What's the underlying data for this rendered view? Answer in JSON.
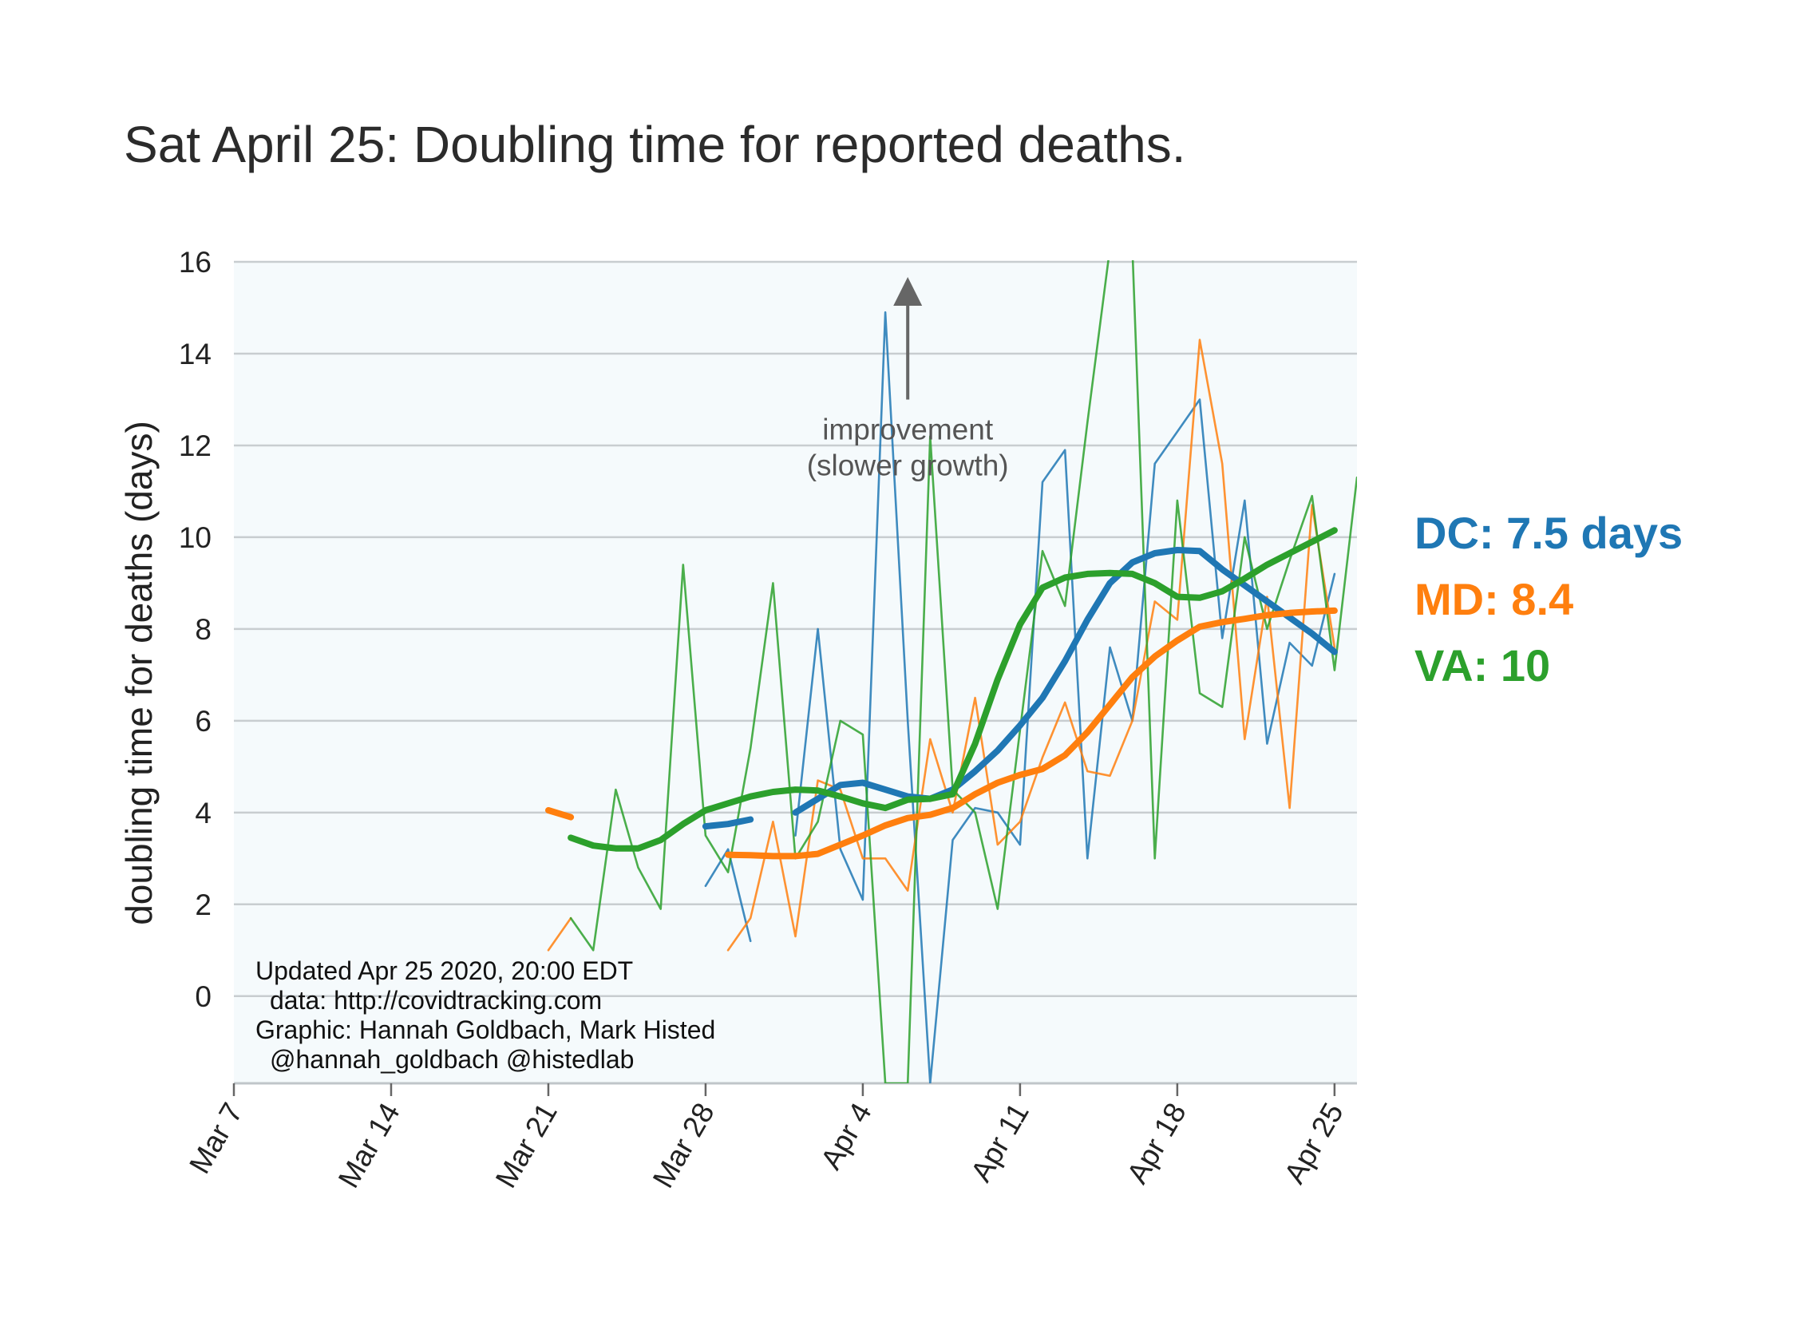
{
  "chart_data": {
    "type": "line",
    "title": "Sat April 25: Doubling time for reported deaths.",
    "xlabel": "",
    "ylabel": "doubling time for deaths (days)",
    "x_ticks": [
      "Mar 7",
      "Mar 14",
      "Mar 21",
      "Mar 28",
      "Apr 4",
      "Apr 11",
      "Apr 18",
      "Apr 25"
    ],
    "y_ticks": [
      "0",
      "2",
      "4",
      "6",
      "8",
      "10",
      "12",
      "14",
      "16"
    ],
    "xlim": [
      "2020-03-07",
      "2020-04-26"
    ],
    "ylim": [
      -1.9,
      16
    ],
    "grid": "horizontal",
    "background": "#f5fafc",
    "annotation": {
      "line1": "improvement",
      "line2": "(slower growth)",
      "x": "2020-04-06",
      "y_from": 13,
      "y_to": 15.6
    },
    "credits": [
      "Updated Apr 25 2020, 20:00 EDT",
      "data: http://covidtracking.com",
      "Graphic: Hannah Goldbach, Mark Histed",
      "@hannah_goldbach @histedlab"
    ],
    "legend": [
      {
        "label": "DC: 7.5 days",
        "color": "#1f77b4"
      },
      {
        "label": "MD: 8.4",
        "color": "#ff7f0e"
      },
      {
        "label": "VA: 10",
        "color": "#2ca02c"
      }
    ],
    "series": [
      {
        "state": "DC",
        "color": "#1f77b4",
        "kind": "raw",
        "points": [
          [
            "2020-03-28",
            2.4
          ],
          [
            "2020-03-29",
            3.2
          ],
          [
            "2020-03-30",
            1.2
          ],
          [
            "2020-03-31",
            null
          ],
          [
            "2020-04-01",
            3.5
          ],
          [
            "2020-04-02",
            8.0
          ],
          [
            "2020-04-03",
            3.2
          ],
          [
            "2020-04-04",
            2.1
          ],
          [
            "2020-04-05",
            14.9
          ],
          [
            "2020-04-06",
            6.0
          ],
          [
            "2020-04-07",
            -1.9
          ],
          [
            "2020-04-08",
            3.4
          ],
          [
            "2020-04-09",
            4.1
          ],
          [
            "2020-04-10",
            4.0
          ],
          [
            "2020-04-11",
            3.3
          ],
          [
            "2020-04-12",
            11.2
          ],
          [
            "2020-04-13",
            11.9
          ],
          [
            "2020-04-14",
            3.0
          ],
          [
            "2020-04-15",
            7.6
          ],
          [
            "2020-04-16",
            6.0
          ],
          [
            "2020-04-17",
            11.6
          ],
          [
            "2020-04-18",
            12.3
          ],
          [
            "2020-04-19",
            13.0
          ],
          [
            "2020-04-20",
            7.8
          ],
          [
            "2020-04-21",
            10.8
          ],
          [
            "2020-04-22",
            5.5
          ],
          [
            "2020-04-23",
            7.7
          ],
          [
            "2020-04-24",
            7.2
          ],
          [
            "2020-04-25",
            9.2
          ]
        ]
      },
      {
        "state": "DC",
        "color": "#1f77b4",
        "kind": "smoothed",
        "points": [
          [
            "2020-03-28",
            3.7
          ],
          [
            "2020-03-29",
            3.75
          ],
          [
            "2020-03-30",
            3.85
          ],
          [
            "2020-03-31",
            null
          ],
          [
            "2020-04-01",
            4.0
          ],
          [
            "2020-04-02",
            4.3
          ],
          [
            "2020-04-03",
            4.6
          ],
          [
            "2020-04-04",
            4.65
          ],
          [
            "2020-04-05",
            4.5
          ],
          [
            "2020-04-06",
            4.35
          ],
          [
            "2020-04-07",
            4.3
          ],
          [
            "2020-04-08",
            4.5
          ],
          [
            "2020-04-09",
            4.9
          ],
          [
            "2020-04-10",
            5.35
          ],
          [
            "2020-04-11",
            5.9
          ],
          [
            "2020-04-12",
            6.5
          ],
          [
            "2020-04-13",
            7.3
          ],
          [
            "2020-04-14",
            8.2
          ],
          [
            "2020-04-15",
            9.0
          ],
          [
            "2020-04-16",
            9.45
          ],
          [
            "2020-04-17",
            9.65
          ],
          [
            "2020-04-18",
            9.72
          ],
          [
            "2020-04-19",
            9.7
          ],
          [
            "2020-04-20",
            9.3
          ],
          [
            "2020-04-21",
            8.95
          ],
          [
            "2020-04-22",
            8.6
          ],
          [
            "2020-04-23",
            8.25
          ],
          [
            "2020-04-24",
            7.9
          ],
          [
            "2020-04-25",
            7.5
          ]
        ]
      },
      {
        "state": "MD",
        "color": "#ff7f0e",
        "kind": "raw",
        "points": [
          [
            "2020-03-21",
            1.0
          ],
          [
            "2020-03-22",
            1.7
          ],
          [
            "2020-03-23",
            null
          ],
          [
            "2020-03-24",
            null
          ],
          [
            "2020-03-25",
            null
          ],
          [
            "2020-03-26",
            null
          ],
          [
            "2020-03-27",
            null
          ],
          [
            "2020-03-28",
            null
          ],
          [
            "2020-03-29",
            1.0
          ],
          [
            "2020-03-30",
            1.7
          ],
          [
            "2020-03-31",
            3.8
          ],
          [
            "2020-04-01",
            1.3
          ],
          [
            "2020-04-02",
            4.7
          ],
          [
            "2020-04-03",
            4.5
          ],
          [
            "2020-04-04",
            3.0
          ],
          [
            "2020-04-05",
            3.0
          ],
          [
            "2020-04-06",
            2.3
          ],
          [
            "2020-04-07",
            5.6
          ],
          [
            "2020-04-08",
            4.0
          ],
          [
            "2020-04-09",
            6.5
          ],
          [
            "2020-04-10",
            3.3
          ],
          [
            "2020-04-11",
            3.8
          ],
          [
            "2020-04-12",
            5.2
          ],
          [
            "2020-04-13",
            6.4
          ],
          [
            "2020-04-14",
            4.9
          ],
          [
            "2020-04-15",
            4.8
          ],
          [
            "2020-04-16",
            6.0
          ],
          [
            "2020-04-17",
            8.6
          ],
          [
            "2020-04-18",
            8.2
          ],
          [
            "2020-04-19",
            14.3
          ],
          [
            "2020-04-20",
            11.6
          ],
          [
            "2020-04-21",
            5.6
          ],
          [
            "2020-04-22",
            8.7
          ],
          [
            "2020-04-23",
            4.1
          ],
          [
            "2020-04-24",
            10.7
          ],
          [
            "2020-04-25",
            7.6
          ]
        ]
      },
      {
        "state": "MD",
        "color": "#ff7f0e",
        "kind": "smoothed",
        "points": [
          [
            "2020-03-21",
            4.05
          ],
          [
            "2020-03-22",
            3.9
          ],
          [
            "2020-03-23",
            null
          ],
          [
            "2020-03-24",
            null
          ],
          [
            "2020-03-25",
            null
          ],
          [
            "2020-03-26",
            null
          ],
          [
            "2020-03-27",
            null
          ],
          [
            "2020-03-28",
            null
          ],
          [
            "2020-03-29",
            3.08
          ],
          [
            "2020-03-30",
            3.07
          ],
          [
            "2020-03-31",
            3.05
          ],
          [
            "2020-04-01",
            3.05
          ],
          [
            "2020-04-02",
            3.1
          ],
          [
            "2020-04-03",
            3.3
          ],
          [
            "2020-04-04",
            3.5
          ],
          [
            "2020-04-05",
            3.72
          ],
          [
            "2020-04-06",
            3.88
          ],
          [
            "2020-04-07",
            3.95
          ],
          [
            "2020-04-08",
            4.1
          ],
          [
            "2020-04-09",
            4.4
          ],
          [
            "2020-04-10",
            4.65
          ],
          [
            "2020-04-11",
            4.82
          ],
          [
            "2020-04-12",
            4.95
          ],
          [
            "2020-04-13",
            5.25
          ],
          [
            "2020-04-14",
            5.75
          ],
          [
            "2020-04-15",
            6.35
          ],
          [
            "2020-04-16",
            6.95
          ],
          [
            "2020-04-17",
            7.4
          ],
          [
            "2020-04-18",
            7.75
          ],
          [
            "2020-04-19",
            8.05
          ],
          [
            "2020-04-20",
            8.15
          ],
          [
            "2020-04-21",
            8.22
          ],
          [
            "2020-04-22",
            8.3
          ],
          [
            "2020-04-23",
            8.35
          ],
          [
            "2020-04-24",
            8.38
          ],
          [
            "2020-04-25",
            8.4
          ]
        ]
      },
      {
        "state": "VA",
        "color": "#2ca02c",
        "kind": "raw",
        "points": [
          [
            "2020-03-21",
            null
          ],
          [
            "2020-03-22",
            1.7
          ],
          [
            "2020-03-23",
            1.0
          ],
          [
            "2020-03-24",
            4.5
          ],
          [
            "2020-03-25",
            2.8
          ],
          [
            "2020-03-26",
            1.9
          ],
          [
            "2020-03-27",
            9.4
          ],
          [
            "2020-03-28",
            3.5
          ],
          [
            "2020-03-29",
            2.7
          ],
          [
            "2020-03-30",
            5.4
          ],
          [
            "2020-03-31",
            9.0
          ],
          [
            "2020-04-01",
            3.0
          ],
          [
            "2020-04-02",
            3.8
          ],
          [
            "2020-04-03",
            6.0
          ],
          [
            "2020-04-04",
            5.7
          ],
          [
            "2020-04-05",
            -1.9
          ],
          [
            "2020-04-06",
            -1.9
          ],
          [
            "2020-04-07",
            12.2
          ],
          [
            "2020-04-08",
            4.5
          ],
          [
            "2020-04-09",
            4.0
          ],
          [
            "2020-04-10",
            1.9
          ],
          [
            "2020-04-11",
            5.8
          ],
          [
            "2020-04-12",
            9.7
          ],
          [
            "2020-04-13",
            8.5
          ],
          [
            "2020-04-14",
            12.5
          ],
          [
            "2020-04-15",
            16.3
          ],
          [
            "2020-04-16",
            16.3
          ],
          [
            "2020-04-17",
            3.0
          ],
          [
            "2020-04-18",
            10.8
          ],
          [
            "2020-04-19",
            6.6
          ],
          [
            "2020-04-20",
            6.3
          ],
          [
            "2020-04-21",
            10.0
          ],
          [
            "2020-04-22",
            8.0
          ],
          [
            "2020-04-23",
            9.5
          ],
          [
            "2020-04-24",
            10.9
          ],
          [
            "2020-04-25",
            7.1
          ],
          [
            "2020-04-26",
            11.3
          ]
        ]
      },
      {
        "state": "VA",
        "color": "#2ca02c",
        "kind": "smoothed",
        "points": [
          [
            "2020-03-22",
            3.45
          ],
          [
            "2020-03-23",
            3.28
          ],
          [
            "2020-03-24",
            3.22
          ],
          [
            "2020-03-25",
            3.22
          ],
          [
            "2020-03-26",
            3.4
          ],
          [
            "2020-03-27",
            3.75
          ],
          [
            "2020-03-28",
            4.05
          ],
          [
            "2020-03-29",
            4.2
          ],
          [
            "2020-03-30",
            4.35
          ],
          [
            "2020-03-31",
            4.45
          ],
          [
            "2020-04-01",
            4.5
          ],
          [
            "2020-04-02",
            4.48
          ],
          [
            "2020-04-03",
            4.35
          ],
          [
            "2020-04-04",
            4.2
          ],
          [
            "2020-04-05",
            4.1
          ],
          [
            "2020-04-06",
            4.28
          ],
          [
            "2020-04-07",
            4.3
          ],
          [
            "2020-04-08",
            4.4
          ],
          [
            "2020-04-09",
            5.5
          ],
          [
            "2020-04-10",
            6.9
          ],
          [
            "2020-04-11",
            8.1
          ],
          [
            "2020-04-12",
            8.9
          ],
          [
            "2020-04-13",
            9.12
          ],
          [
            "2020-04-14",
            9.2
          ],
          [
            "2020-04-15",
            9.22
          ],
          [
            "2020-04-16",
            9.2
          ],
          [
            "2020-04-17",
            9.0
          ],
          [
            "2020-04-18",
            8.7
          ],
          [
            "2020-04-19",
            8.68
          ],
          [
            "2020-04-20",
            8.82
          ],
          [
            "2020-04-21",
            9.1
          ],
          [
            "2020-04-22",
            9.4
          ],
          [
            "2020-04-23",
            9.65
          ],
          [
            "2020-04-24",
            9.9
          ],
          [
            "2020-04-25",
            10.15
          ]
        ]
      }
    ]
  }
}
